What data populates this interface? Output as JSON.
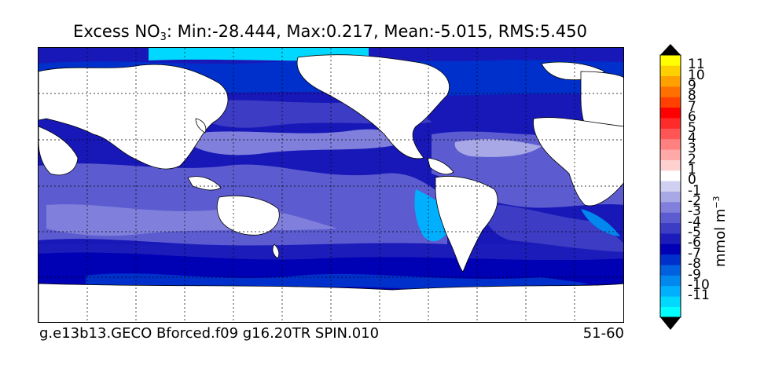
{
  "title": {
    "prefix": "Excess NO",
    "subscript": "3",
    "stats": ": Min:-28.444, Max:0.217, Mean:-5.015, RMS:5.450"
  },
  "footer": {
    "run": "g.e13b13.GECO Bforced.f09 g16.20TR SPIN.010",
    "period": "51-60"
  },
  "colorbar": {
    "unit_base": "mmol m",
    "unit_exp": "−3",
    "ticks": [
      "11",
      "10",
      "9",
      "8",
      "7",
      "6",
      "5",
      "4",
      "3",
      "2",
      "1",
      "0",
      "-1",
      "-2",
      "-3",
      "-4",
      "-5",
      "-6",
      "-7",
      "-8",
      "-9",
      "-10",
      "-11"
    ],
    "colors": [
      "#00ffff",
      "#00d8ff",
      "#00b0ff",
      "#0088ee",
      "#0060dd",
      "#0030cc",
      "#0000b4",
      "#1c1cbb",
      "#3c3cc4",
      "#5c5cd0",
      "#8080dc",
      "#a8a8e6",
      "#d0d0f0",
      "#ffffff",
      "#ffd0d0",
      "#ffa8a8",
      "#ff8080",
      "#ff5555",
      "#ff2a2a",
      "#ff0000",
      "#ff4000",
      "#ff7000",
      "#ffa000",
      "#ffd000",
      "#ffff00"
    ],
    "under_color": "#000000",
    "over_color": "#000000"
  },
  "map": {
    "ocean_base_color": "#1818b8",
    "land_color": "#ffffff",
    "grid": "dotted"
  }
}
